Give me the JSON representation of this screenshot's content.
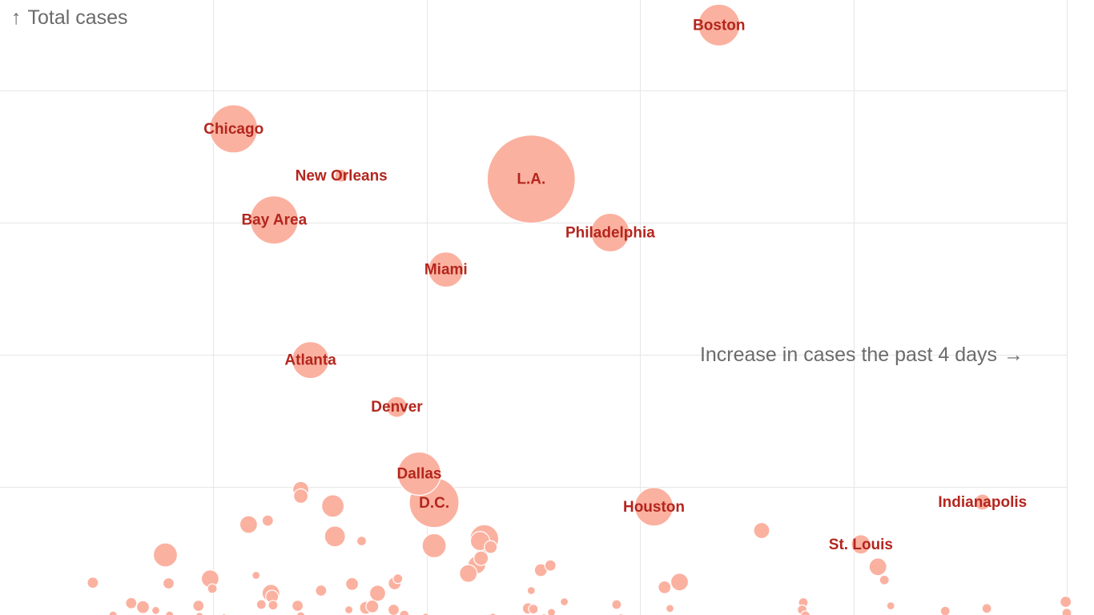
{
  "chart_data": {
    "type": "scatter",
    "title": "",
    "xlabel": "Increase in cases the past 4 days",
    "ylabel": "Total cases",
    "x_arrow": "→",
    "y_arrow": "↑",
    "xlim": [
      0,
      100
    ],
    "ylim": [
      0,
      100
    ],
    "grid": true,
    "x_gridlines": [
      20,
      40,
      60,
      80,
      100
    ],
    "y_gridlines": [
      20,
      40,
      60,
      80
    ],
    "colors": {
      "bubble": "#fbb1a0",
      "label": "#b3261e",
      "axis_text": "#6b6b6b",
      "grid": "#e6e6e6"
    },
    "labeled_points": [
      {
        "name": "Boston",
        "x": 67.4,
        "y": 89.9,
        "size": 26
      },
      {
        "name": "Chicago",
        "x": 21.9,
        "y": 74.2,
        "size": 30
      },
      {
        "name": "New Orleans",
        "x": 32.0,
        "y": 67.1,
        "size": 8
      },
      {
        "name": "L.A.",
        "x": 49.8,
        "y": 66.6,
        "size": 55
      },
      {
        "name": "Bay Area",
        "x": 25.7,
        "y": 60.4,
        "size": 30
      },
      {
        "name": "Philadelphia",
        "x": 57.2,
        "y": 58.5,
        "size": 24
      },
      {
        "name": "Miami",
        "x": 41.8,
        "y": 52.9,
        "size": 22
      },
      {
        "name": "Atlanta",
        "x": 29.1,
        "y": 39.2,
        "size": 23
      },
      {
        "name": "Denver",
        "x": 37.2,
        "y": 32.1,
        "size": 13
      },
      {
        "name": "Dallas",
        "x": 39.3,
        "y": 22.0,
        "size": 27
      },
      {
        "name": "D.C.",
        "x": 40.7,
        "y": 17.6,
        "size": 31
      },
      {
        "name": "Houston",
        "x": 61.3,
        "y": 17.0,
        "size": 24
      },
      {
        "name": "Indianapolis",
        "x": 92.1,
        "y": 17.7,
        "size": 10
      },
      {
        "name": "St. Louis",
        "x": 80.7,
        "y": 11.3,
        "size": 12
      }
    ],
    "points": [
      {
        "x": 28.2,
        "y": 19.6,
        "size": 10
      },
      {
        "x": 28.2,
        "y": 18.6,
        "size": 9
      },
      {
        "x": 31.2,
        "y": 17.1,
        "size": 14
      },
      {
        "x": 23.3,
        "y": 14.3,
        "size": 11
      },
      {
        "x": 25.1,
        "y": 14.9,
        "size": 7
      },
      {
        "x": 31.4,
        "y": 12.5,
        "size": 13
      },
      {
        "x": 15.5,
        "y": 9.7,
        "size": 15
      },
      {
        "x": 45.4,
        "y": 12.1,
        "size": 18
      },
      {
        "x": 45.0,
        "y": 11.8,
        "size": 12
      },
      {
        "x": 46.0,
        "y": 10.9,
        "size": 8
      },
      {
        "x": 40.7,
        "y": 11.1,
        "size": 15
      },
      {
        "x": 45.1,
        "y": 9.2,
        "size": 9
      },
      {
        "x": 44.7,
        "y": 8.2,
        "size": 11
      },
      {
        "x": 51.6,
        "y": 8.1,
        "size": 7
      },
      {
        "x": 50.7,
        "y": 7.4,
        "size": 8
      },
      {
        "x": 43.9,
        "y": 6.9,
        "size": 11
      },
      {
        "x": 71.4,
        "y": 13.4,
        "size": 10
      },
      {
        "x": 82.3,
        "y": 7.9,
        "size": 11
      },
      {
        "x": 82.9,
        "y": 5.9,
        "size": 6
      },
      {
        "x": 63.7,
        "y": 5.6,
        "size": 11
      },
      {
        "x": 62.3,
        "y": 4.8,
        "size": 8
      },
      {
        "x": 8.7,
        "y": 5.5,
        "size": 7
      },
      {
        "x": 15.8,
        "y": 5.4,
        "size": 7
      },
      {
        "x": 19.7,
        "y": 6.1,
        "size": 11
      },
      {
        "x": 19.9,
        "y": 4.6,
        "size": 6
      },
      {
        "x": 24.0,
        "y": 6.6,
        "size": 5
      },
      {
        "x": 25.4,
        "y": 3.9,
        "size": 11
      },
      {
        "x": 25.5,
        "y": 3.4,
        "size": 8
      },
      {
        "x": 30.1,
        "y": 4.3,
        "size": 7
      },
      {
        "x": 33.0,
        "y": 5.3,
        "size": 8
      },
      {
        "x": 35.4,
        "y": 3.9,
        "size": 10
      },
      {
        "x": 37.0,
        "y": 5.4,
        "size": 8
      },
      {
        "x": 37.3,
        "y": 6.1,
        "size": 6
      },
      {
        "x": 12.3,
        "y": 2.4,
        "size": 7
      },
      {
        "x": 13.4,
        "y": 1.8,
        "size": 8
      },
      {
        "x": 14.6,
        "y": 1.3,
        "size": 5
      },
      {
        "x": 18.6,
        "y": 2.0,
        "size": 7
      },
      {
        "x": 24.5,
        "y": 2.2,
        "size": 6
      },
      {
        "x": 25.6,
        "y": 2.1,
        "size": 6
      },
      {
        "x": 27.9,
        "y": 2.0,
        "size": 7
      },
      {
        "x": 32.7,
        "y": 1.4,
        "size": 5
      },
      {
        "x": 34.3,
        "y": 1.7,
        "size": 8
      },
      {
        "x": 34.9,
        "y": 1.9,
        "size": 8
      },
      {
        "x": 36.9,
        "y": 1.4,
        "size": 7
      },
      {
        "x": 37.9,
        "y": 0.6,
        "size": 6
      },
      {
        "x": 49.8,
        "y": 4.3,
        "size": 5
      },
      {
        "x": 49.5,
        "y": 1.6,
        "size": 7
      },
      {
        "x": 50.0,
        "y": 1.5,
        "size": 6
      },
      {
        "x": 51.7,
        "y": 1.0,
        "size": 5
      },
      {
        "x": 52.9,
        "y": 2.6,
        "size": 5
      },
      {
        "x": 57.8,
        "y": 2.2,
        "size": 6
      },
      {
        "x": 62.8,
        "y": 1.6,
        "size": 5
      },
      {
        "x": 75.3,
        "y": 2.5,
        "size": 6
      },
      {
        "x": 75.2,
        "y": 1.4,
        "size": 6
      },
      {
        "x": 75.5,
        "y": 0.5,
        "size": 6
      },
      {
        "x": 83.5,
        "y": 2.0,
        "size": 5
      },
      {
        "x": 88.6,
        "y": 1.2,
        "size": 6
      },
      {
        "x": 92.5,
        "y": 1.6,
        "size": 6
      },
      {
        "x": 99.9,
        "y": 2.6,
        "size": 7
      },
      {
        "x": 100.0,
        "y": 0.9,
        "size": 6
      },
      {
        "x": 10.6,
        "y": 0.6,
        "size": 5
      },
      {
        "x": 15.9,
        "y": 0.6,
        "size": 5
      },
      {
        "x": 18.7,
        "y": 0.4,
        "size": 5
      },
      {
        "x": 21.0,
        "y": 0.3,
        "size": 4
      },
      {
        "x": 28.2,
        "y": 0.5,
        "size": 5
      },
      {
        "x": 39.9,
        "y": 0.4,
        "size": 4
      },
      {
        "x": 46.2,
        "y": 0.4,
        "size": 4
      },
      {
        "x": 51.0,
        "y": 0.3,
        "size": 4
      },
      {
        "x": 58.2,
        "y": 0.3,
        "size": 4
      },
      {
        "x": 33.9,
        "y": 11.8,
        "size": 6
      }
    ]
  }
}
